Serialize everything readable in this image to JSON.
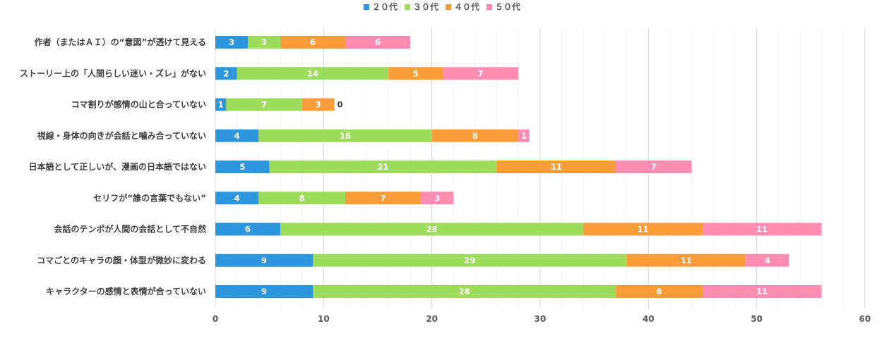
{
  "chart_data": {
    "type": "bar",
    "orientation": "horizontal",
    "stacked": true,
    "title": "",
    "xlabel": "",
    "ylabel": "",
    "xlim": [
      0,
      60
    ],
    "x_ticks": [
      0,
      10,
      20,
      30,
      40,
      50,
      60
    ],
    "grid": true,
    "legend_position": "top",
    "categories": [
      "作者（またはＡＩ）の“意図”が透けて見える",
      "ストーリー上の「人間らしい迷い・ズレ」がない",
      "コマ割りが感情の山と合っていない",
      "視線・身体の向きが会話と噛み合っていない",
      "日本語として正しいが、漫画の日本語ではない",
      "セリフが“誰の言葉でもない”",
      "会話のテンポが人間の会話として不自然",
      "コマごとのキャラの顔・体型が微妙に変わる",
      "キャラクターの感情と表情が合っていない"
    ],
    "series": [
      {
        "name": "２０代",
        "color": "#2E96DC",
        "label_color": "#ffffff",
        "values": [
          3,
          2,
          1,
          4,
          5,
          4,
          6,
          9,
          9
        ]
      },
      {
        "name": "３０代",
        "color": "#9DDC5C",
        "label_color": "#ffffff",
        "values": [
          3,
          14,
          7,
          16,
          21,
          8,
          28,
          29,
          28
        ]
      },
      {
        "name": "４０代",
        "color": "#F99D3A",
        "label_color": "#ffffff",
        "values": [
          6,
          5,
          3,
          8,
          11,
          7,
          11,
          11,
          8
        ]
      },
      {
        "name": "５０代",
        "color": "#FF8DB2",
        "label_color": "#ffffff",
        "values": [
          6,
          7,
          0,
          1,
          7,
          3,
          11,
          4,
          11
        ]
      }
    ]
  }
}
